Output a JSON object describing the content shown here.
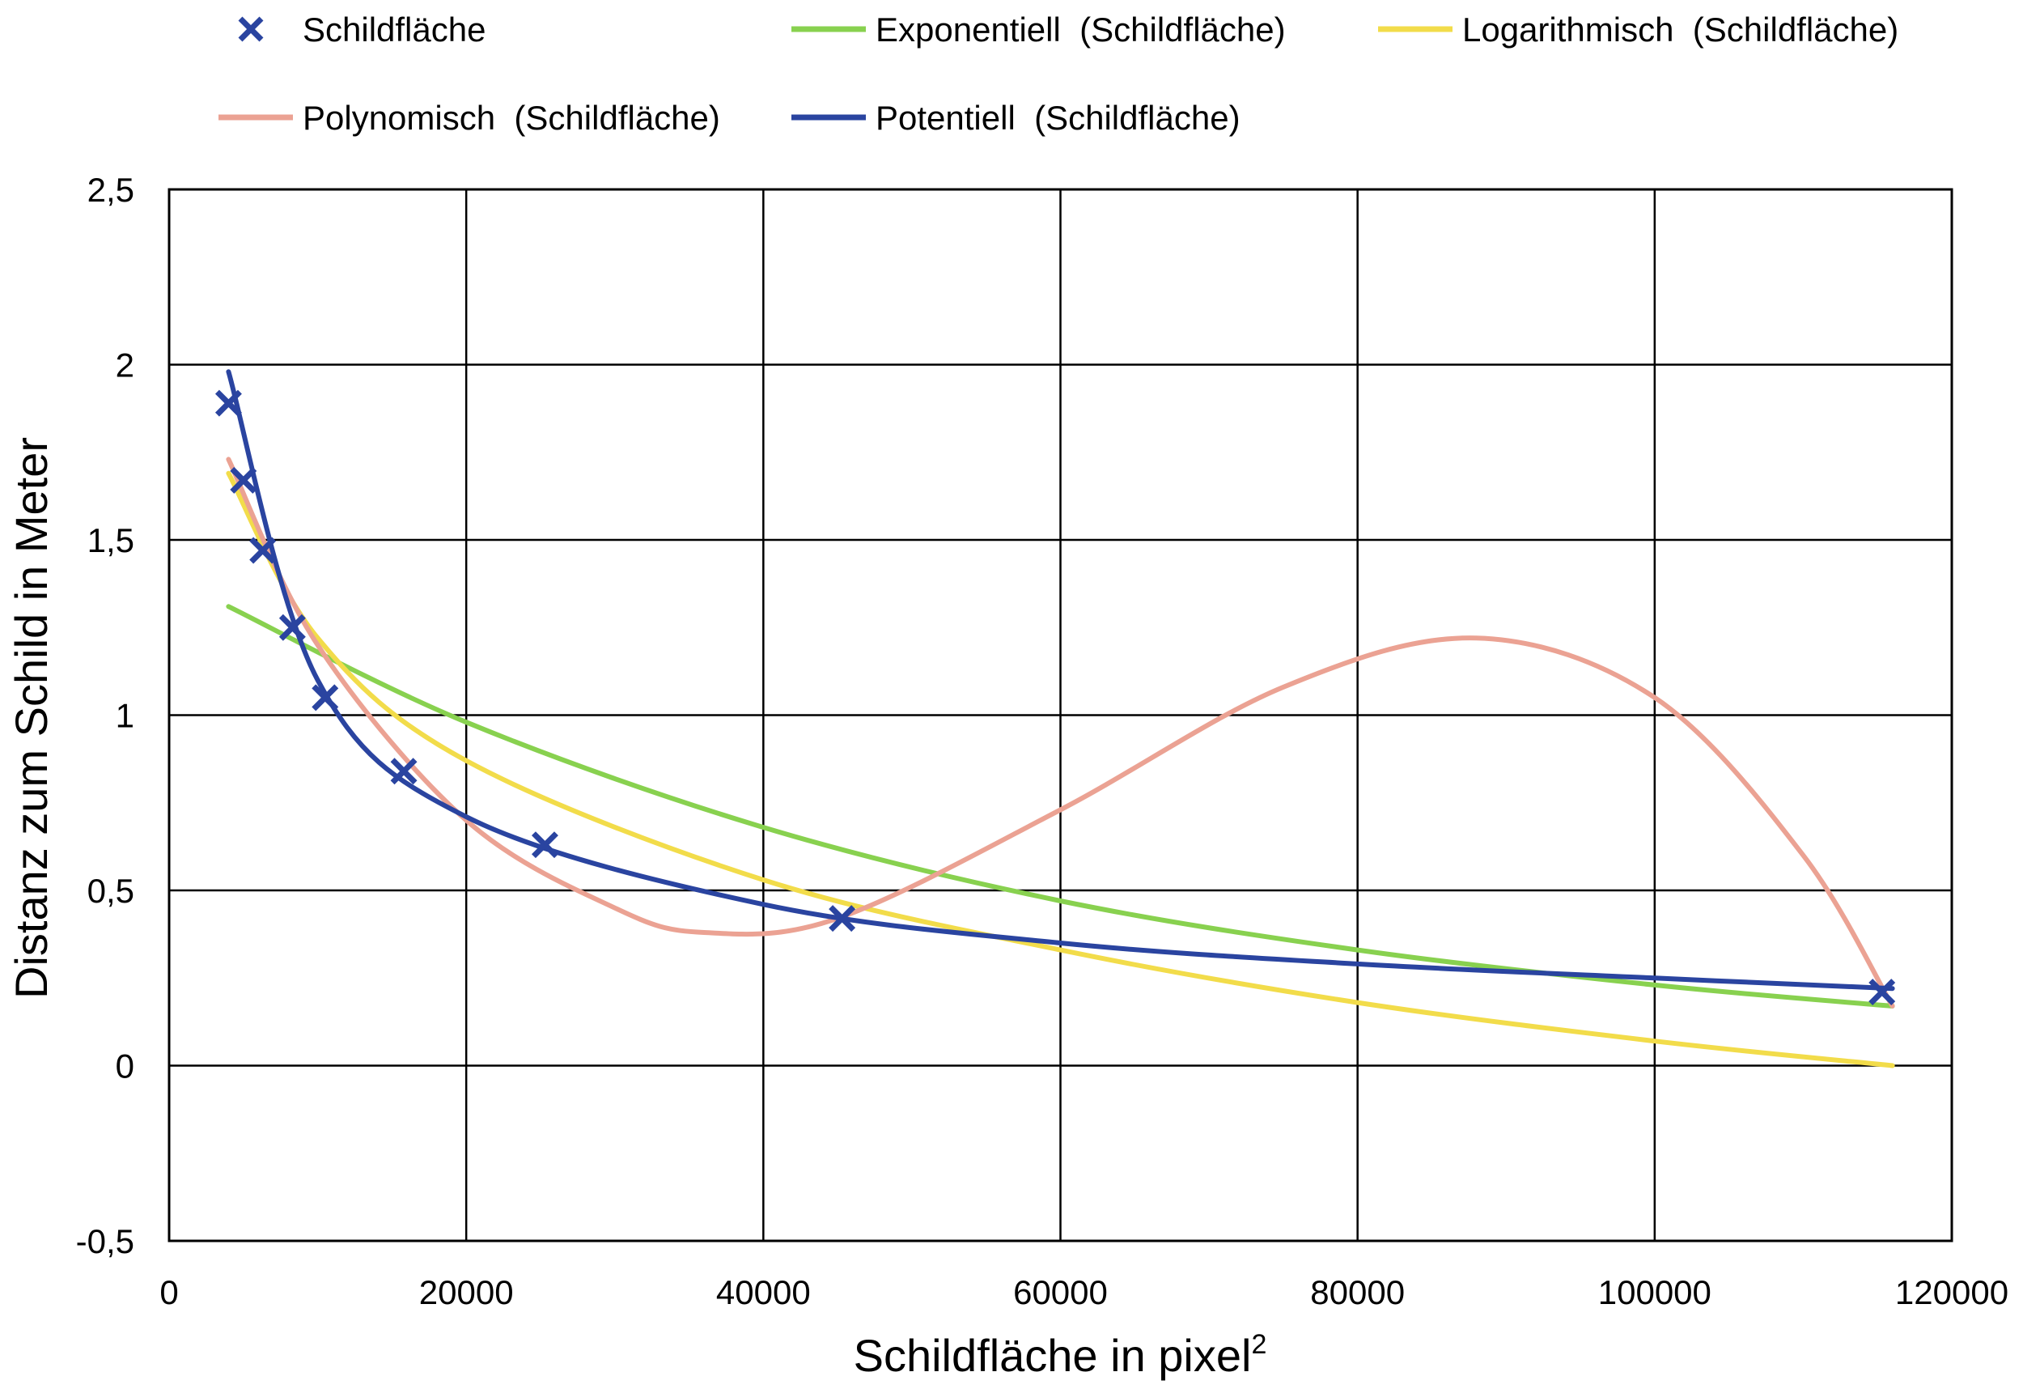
{
  "chart_data": {
    "type": "scatter",
    "xlabel": "Schildfläche in pixel",
    "xlabel_superscript": "2",
    "ylabel": "Distanz zum Schild in Meter",
    "xlim": [
      0,
      120000
    ],
    "ylim": [
      -0.5,
      2.5
    ],
    "x_ticks": [
      0,
      20000,
      40000,
      60000,
      80000,
      100000,
      120000
    ],
    "x_tick_labels": [
      "0",
      "20000",
      "40000",
      "60000",
      "80000",
      "100000",
      "120000"
    ],
    "y_ticks": [
      -0.5,
      0,
      0.5,
      1,
      1.5,
      2,
      2.5
    ],
    "y_tick_labels": [
      "-0,5",
      "0",
      "0,5",
      "1",
      "1,5",
      "2",
      "2,5"
    ],
    "grid": true,
    "legend_position": "top",
    "scatter": {
      "name": "Schildfläche",
      "color": "#2a44a0",
      "marker": "x",
      "points": [
        [
          4000,
          1.89
        ],
        [
          5000,
          1.67
        ],
        [
          6300,
          1.47
        ],
        [
          8300,
          1.25
        ],
        [
          10500,
          1.05
        ],
        [
          15800,
          0.84
        ],
        [
          25300,
          0.63
        ],
        [
          45300,
          0.42
        ],
        [
          115300,
          0.21
        ]
      ]
    },
    "trendlines": [
      {
        "name": "Exponentiell  (Schildfläche)",
        "color": "#88d14f",
        "kind": "exponential",
        "x_range": [
          4000,
          116000
        ],
        "samples": [
          [
            4000,
            1.31
          ],
          [
            20000,
            0.98
          ],
          [
            40000,
            0.68
          ],
          [
            60000,
            0.47
          ],
          [
            80000,
            0.33
          ],
          [
            100000,
            0.23
          ],
          [
            116000,
            0.17
          ]
        ]
      },
      {
        "name": "Logarithmisch  (Schildfläche)",
        "color": "#f2dc4a",
        "kind": "logarithmic",
        "x_range": [
          4000,
          116000
        ],
        "samples": [
          [
            4000,
            1.69
          ],
          [
            10000,
            1.22
          ],
          [
            20000,
            0.87
          ],
          [
            40000,
            0.53
          ],
          [
            60000,
            0.33
          ],
          [
            80000,
            0.18
          ],
          [
            100000,
            0.07
          ],
          [
            116000,
            0.0
          ]
        ]
      },
      {
        "name": "Polynomisch  (Schildfläche)",
        "color": "#eba293",
        "kind": "polynomial",
        "x_range": [
          4000,
          116000
        ],
        "samples": [
          [
            4000,
            1.73
          ],
          [
            10000,
            1.2
          ],
          [
            20000,
            0.7
          ],
          [
            30000,
            0.45
          ],
          [
            36000,
            0.38
          ],
          [
            45000,
            0.42
          ],
          [
            60000,
            0.73
          ],
          [
            75000,
            1.08
          ],
          [
            88000,
            1.22
          ],
          [
            100000,
            1.05
          ],
          [
            110000,
            0.6
          ],
          [
            116000,
            0.17
          ]
        ]
      },
      {
        "name": "Potentiell  (Schildfläche)",
        "color": "#2a44a0",
        "kind": "power",
        "x_range": [
          4000,
          116000
        ],
        "samples": [
          [
            4000,
            1.98
          ],
          [
            10000,
            1.1
          ],
          [
            20000,
            0.71
          ],
          [
            40000,
            0.46
          ],
          [
            60000,
            0.35
          ],
          [
            80000,
            0.29
          ],
          [
            100000,
            0.25
          ],
          [
            116000,
            0.22
          ]
        ]
      }
    ],
    "legend_order": [
      "Schildfläche",
      "Exponentiell  (Schildfläche)",
      "Logarithmisch  (Schildfläche)",
      "Polynomisch  (Schildfläche)",
      "Potentiell  (Schildfläche)"
    ]
  }
}
